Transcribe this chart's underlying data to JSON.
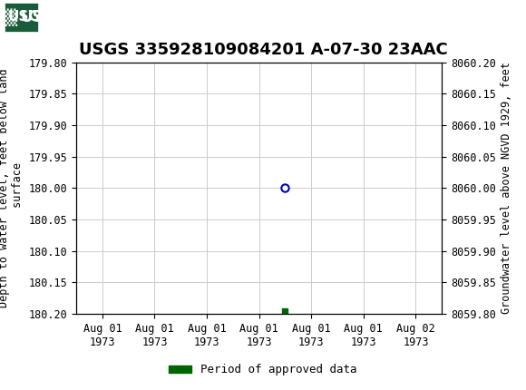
{
  "title": "USGS 335928109084201 A-07-30 23AAC",
  "left_ylabel_line1": "Depth to water level, feet below land",
  "left_ylabel_line2": " surface",
  "right_ylabel": "Groundwater level above NGVD 1929, feet",
  "ylim_left_top": 179.8,
  "ylim_left_bottom": 180.2,
  "ylim_right_top": 8060.2,
  "ylim_right_bottom": 8059.8,
  "left_yticks": [
    179.8,
    179.85,
    179.9,
    179.95,
    180.0,
    180.05,
    180.1,
    180.15,
    180.2
  ],
  "right_yticks": [
    8060.2,
    8060.15,
    8060.1,
    8060.05,
    8060.0,
    8059.95,
    8059.9,
    8059.85,
    8059.8
  ],
  "data_point_x": 3.5,
  "data_point_y": 180.0,
  "small_square_x": 3.5,
  "small_square_y": 180.195,
  "legend_label": "Period of approved data",
  "legend_color": "#006400",
  "point_color": "#0000cd",
  "fig_bg_color": "#ffffff",
  "plot_bg_color": "#ffffff",
  "header_color": "#006400",
  "grid_color": "#cccccc",
  "title_fontsize": 13,
  "tick_fontsize": 8.5,
  "ylabel_fontsize": 8.5,
  "x_tick_labels": [
    "Aug 01\n1973",
    "Aug 01\n1973",
    "Aug 01\n1973",
    "Aug 01\n1973",
    "Aug 01\n1973",
    "Aug 01\n1973",
    "Aug 02\n1973"
  ],
  "x_tick_positions": [
    0,
    1,
    2,
    3,
    4,
    5,
    6
  ],
  "xlim": [
    -0.5,
    6.5
  ]
}
